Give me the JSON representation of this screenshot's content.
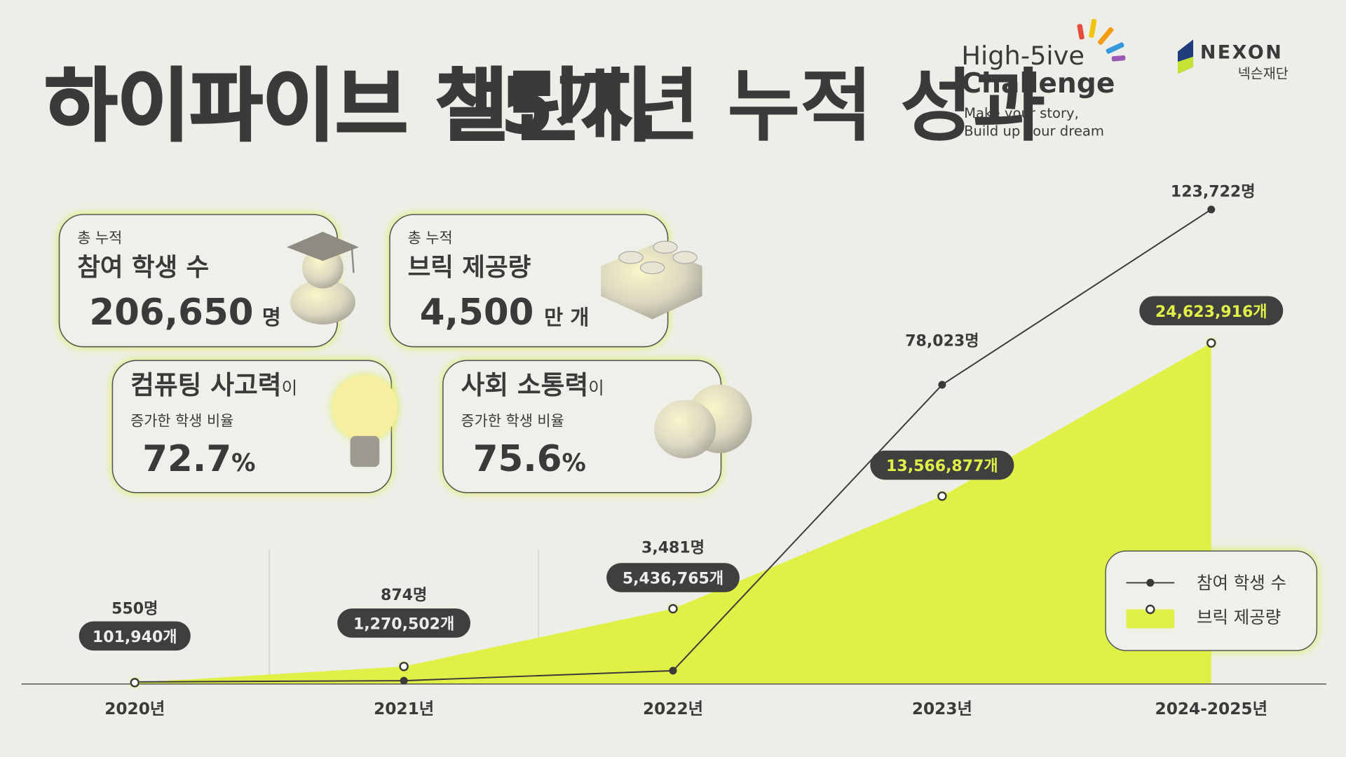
{
  "header": {
    "title_highlight": "하이파이브 챌린지",
    "title": "5개년 누적 성과"
  },
  "logos": {
    "brand": "High-5ive",
    "brand_line2": "Challenge",
    "slogan": [
      "Make your story,",
      "Build up your dream"
    ],
    "nexon": "NEXON",
    "foundation": "넥슨재단"
  },
  "cards": [
    {
      "label": "총 누적",
      "title": "참여 학생 수",
      "value": "206,650",
      "unit": "명"
    },
    {
      "label": "총 누적",
      "title": "브릭 제공량",
      "value": "4,500",
      "unit": "만 개"
    },
    {
      "title": "컴퓨팅 사고력",
      "suffix": "이",
      "label": "증가한 학생 비율",
      "value": "72.7",
      "unit": "%"
    },
    {
      "title": "사회 소통력",
      "suffix": "이",
      "label": "증가한 학생 비율",
      "value": "75.6",
      "unit": "%"
    }
  ],
  "chart_data": {
    "type": "line",
    "categories": [
      "2020년",
      "2021년",
      "2022년",
      "2023년",
      "2024-2025년"
    ],
    "series": [
      {
        "name": "참여 학생 수",
        "type": "line",
        "color": "#3a3a3a",
        "values": [
          550,
          874,
          3481,
          78023,
          123722
        ],
        "value_labels": [
          "550명",
          "874명",
          "3,481명",
          "78,023명",
          "123,722명"
        ]
      },
      {
        "name": "브릭 제공량",
        "type": "area",
        "axis": "y2",
        "color": "#e0f047",
        "values": [
          101940,
          1270502,
          5436765,
          13566877,
          24623916
        ],
        "value_labels": [
          "101,940개",
          "1,270,502개",
          "5,436,765개",
          "13,566,877개",
          "24,623,916개"
        ]
      }
    ],
    "ylim": [
      0,
      130000
    ],
    "y2lim": [
      0,
      36000000
    ],
    "legend": "bottom-right"
  }
}
